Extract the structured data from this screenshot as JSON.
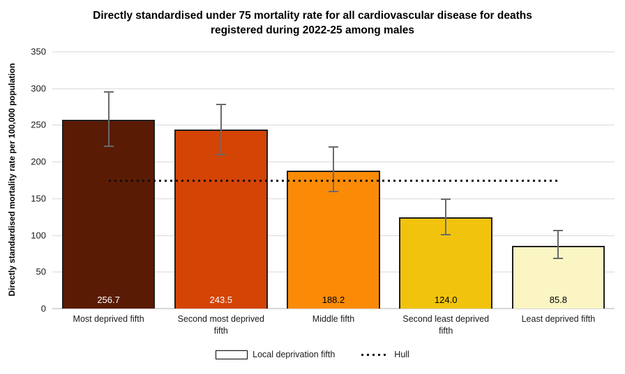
{
  "chart_data": {
    "type": "bar",
    "title": "Directly standardised under 75 mortality rate for all cardiovascular disease for deaths registered during 2022-25 among males",
    "ylabel": "Directly standardised mortality rate per 100,000 population",
    "xlabel": "",
    "ylim": [
      0,
      350
    ],
    "yticks": [
      0,
      50,
      100,
      150,
      200,
      250,
      300,
      350
    ],
    "grid": true,
    "legend_position": "bottom",
    "categories": [
      "Most deprived fifth",
      "Second most deprived fifth",
      "Middle fifth",
      "Second least deprived fifth",
      "Least deprived fifth"
    ],
    "series": [
      {
        "name": "Local deprivation fifth",
        "values": [
          256.7,
          243.5,
          188.2,
          124.0,
          85.8
        ],
        "value_labels": [
          "256.7",
          "243.5",
          "188.2",
          "124.0",
          "85.8"
        ],
        "bar_colors": [
          "#5a1b04",
          "#d34405",
          "#fb8b06",
          "#f2c30d",
          "#fbf5c4"
        ],
        "value_label_colors": [
          "#ffffff",
          "#ffffff",
          "#000000",
          "#000000",
          "#000000"
        ],
        "error_low": [
          221,
          210,
          159,
          101,
          68
        ],
        "error_high": [
          295,
          278,
          220,
          149,
          106
        ]
      }
    ],
    "reference_line": {
      "name": "Hull",
      "value": 174,
      "style": "dotted",
      "color": "#000000"
    },
    "legend": {
      "items": [
        {
          "label": "Local deprivation fifth",
          "swatch": "outlined-box"
        },
        {
          "label": "Hull",
          "swatch": "dotted-line"
        }
      ]
    },
    "style_colors": {
      "gridline": "#d9d9d9",
      "error_bar": "#6a6a6a",
      "bar_border": "#1f1f1f"
    }
  }
}
